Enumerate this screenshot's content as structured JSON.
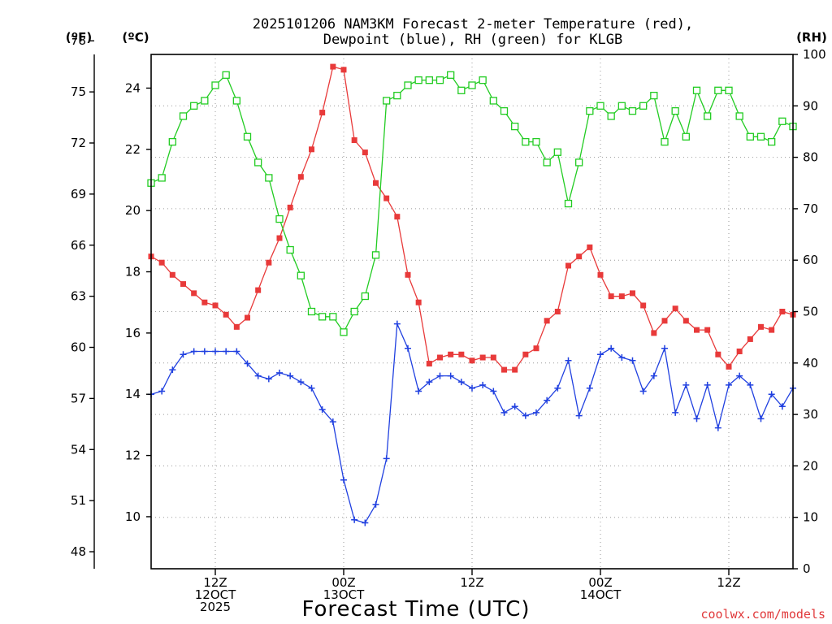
{
  "chart_data": {
    "type": "line",
    "title_line1": "2025101206 NAM3KM Forecast 2-meter Temperature (red),",
    "title_line2": "Dewpoint (blue), RH (green) for KLGB",
    "xlabel": "Forecast Time (UTC)",
    "credit": "coolwx.com/models",
    "unit_labels": {
      "fahrenheit": "(ºF)",
      "celsius": "(ºC)",
      "rh": "(RH)"
    },
    "celsius_axis": {
      "range": [
        8.3,
        25.1
      ],
      "ticks": [
        10,
        12,
        14,
        16,
        18,
        20,
        22,
        24
      ]
    },
    "fahrenheit_axis": {
      "range": [
        47,
        77.2
      ],
      "ticks": [
        48,
        51,
        54,
        57,
        60,
        63,
        66,
        69,
        72,
        75,
        78
      ]
    },
    "rh_axis": {
      "range": [
        0,
        100
      ],
      "ticks": [
        0,
        10,
        20,
        30,
        40,
        50,
        60,
        70,
        80,
        90,
        100
      ]
    },
    "x_axis": {
      "range": [
        6,
        66
      ],
      "ticks": [
        {
          "hour": 12,
          "lines": [
            "12Z",
            "12OCT",
            "2025"
          ]
        },
        {
          "hour": 24,
          "lines": [
            "00Z",
            "13OCT"
          ]
        },
        {
          "hour": 36,
          "lines": [
            "12Z"
          ]
        },
        {
          "hour": 48,
          "lines": [
            "00Z",
            "14OCT"
          ]
        },
        {
          "hour": 60,
          "lines": [
            "12Z"
          ]
        }
      ]
    },
    "series": [
      {
        "name": "2-meter Temperature",
        "units": "C",
        "color": "#e83a3a",
        "marker": "filled-square",
        "x": [
          6,
          7,
          8,
          9,
          10,
          11,
          12,
          13,
          14,
          15,
          16,
          17,
          18,
          19,
          20,
          21,
          22,
          23,
          24,
          25,
          26,
          27,
          28,
          29,
          30,
          31,
          32,
          33,
          34,
          35,
          36,
          37,
          38,
          39,
          40,
          41,
          42,
          43,
          44,
          45,
          46,
          47,
          48,
          49,
          50,
          51,
          52,
          53,
          54,
          55,
          56,
          57,
          58,
          59,
          60,
          61,
          62,
          63,
          64,
          65,
          66
        ],
        "values": [
          18.5,
          18.3,
          17.9,
          17.6,
          17.3,
          17.0,
          16.9,
          16.6,
          16.2,
          16.5,
          17.4,
          18.3,
          19.1,
          20.1,
          21.1,
          22.0,
          23.2,
          24.7,
          24.6,
          22.3,
          21.9,
          20.9,
          20.4,
          19.8,
          17.9,
          17.0,
          15.0,
          15.2,
          15.3,
          15.3,
          15.1,
          15.2,
          15.2,
          14.8,
          14.8,
          15.3,
          15.5,
          16.4,
          16.7,
          18.2,
          18.5,
          18.8,
          17.9,
          17.2,
          17.2,
          17.3,
          16.9,
          16.0,
          16.4,
          16.8,
          16.4,
          16.1,
          16.1,
          15.3,
          14.9,
          15.4,
          15.8,
          16.2,
          16.1,
          16.7,
          16.6
        ]
      },
      {
        "name": "Dewpoint",
        "units": "C",
        "color": "#2040e0",
        "marker": "plus",
        "x": [
          6,
          7,
          8,
          9,
          10,
          11,
          12,
          13,
          14,
          15,
          16,
          17,
          18,
          19,
          20,
          21,
          22,
          23,
          24,
          25,
          26,
          27,
          28,
          29,
          30,
          31,
          32,
          33,
          34,
          35,
          36,
          37,
          38,
          39,
          40,
          41,
          42,
          43,
          44,
          45,
          46,
          47,
          48,
          49,
          50,
          51,
          52,
          53,
          54,
          55,
          56,
          57,
          58,
          59,
          60,
          61,
          62,
          63,
          64,
          65,
          66
        ],
        "values": [
          14.0,
          14.1,
          14.8,
          15.3,
          15.4,
          15.4,
          15.4,
          15.4,
          15.4,
          15.0,
          14.6,
          14.5,
          14.7,
          14.6,
          14.4,
          14.2,
          13.5,
          13.1,
          11.2,
          9.9,
          9.8,
          10.4,
          11.9,
          16.3,
          15.5,
          14.1,
          14.4,
          14.6,
          14.6,
          14.4,
          14.2,
          14.3,
          14.1,
          13.4,
          13.6,
          13.3,
          13.4,
          13.8,
          14.2,
          15.1,
          13.3,
          14.2,
          15.3,
          15.5,
          15.2,
          15.1,
          14.1,
          14.6,
          15.5,
          13.4,
          14.3,
          13.2,
          14.3,
          12.9,
          14.3,
          14.6,
          14.3,
          13.2,
          14.0,
          13.6,
          14.2
        ]
      },
      {
        "name": "RH",
        "units": "%",
        "color": "#22cc22",
        "marker": "open-square",
        "x": [
          6,
          7,
          8,
          9,
          10,
          11,
          12,
          13,
          14,
          15,
          16,
          17,
          18,
          19,
          20,
          21,
          22,
          23,
          24,
          25,
          26,
          27,
          28,
          29,
          30,
          31,
          32,
          33,
          34,
          35,
          36,
          37,
          38,
          39,
          40,
          41,
          42,
          43,
          44,
          45,
          46,
          47,
          48,
          49,
          50,
          51,
          52,
          53,
          54,
          55,
          56,
          57,
          58,
          59,
          60,
          61,
          62,
          63,
          64,
          65,
          66
        ],
        "values": [
          75,
          76,
          83,
          88,
          90,
          91,
          94,
          96,
          91,
          84,
          79,
          76,
          68,
          62,
          57,
          50,
          49,
          49,
          46,
          50,
          53,
          61,
          91,
          92,
          94,
          95,
          95,
          95,
          96,
          93,
          94,
          95,
          91,
          89,
          86,
          83,
          83,
          79,
          81,
          71,
          79,
          89,
          90,
          88,
          90,
          89,
          90,
          92,
          83,
          89,
          84,
          93,
          88,
          93,
          93,
          88,
          84,
          84,
          83,
          87,
          86
        ]
      }
    ]
  }
}
